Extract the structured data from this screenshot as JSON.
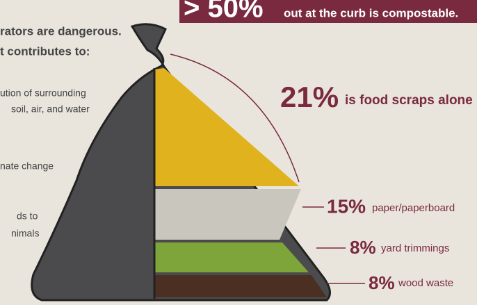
{
  "banner": {
    "big": "> 50%",
    "text": "out at the curb is compostable."
  },
  "left_text": {
    "heading": [
      "rators are dangerous.",
      "t contributes to:"
    ],
    "items": [
      "ution of surrounding",
      "soil, air, and water",
      "nate change",
      "ds to",
      "nimals"
    ]
  },
  "callouts": [
    {
      "percent": "21%",
      "label": "is food scraps alone"
    },
    {
      "percent": "15%",
      "label": "paper/paperboard"
    },
    {
      "percent": "8%",
      "label": "yard trimmings"
    },
    {
      "percent": "8%",
      "label": "wood waste"
    }
  ]
}
